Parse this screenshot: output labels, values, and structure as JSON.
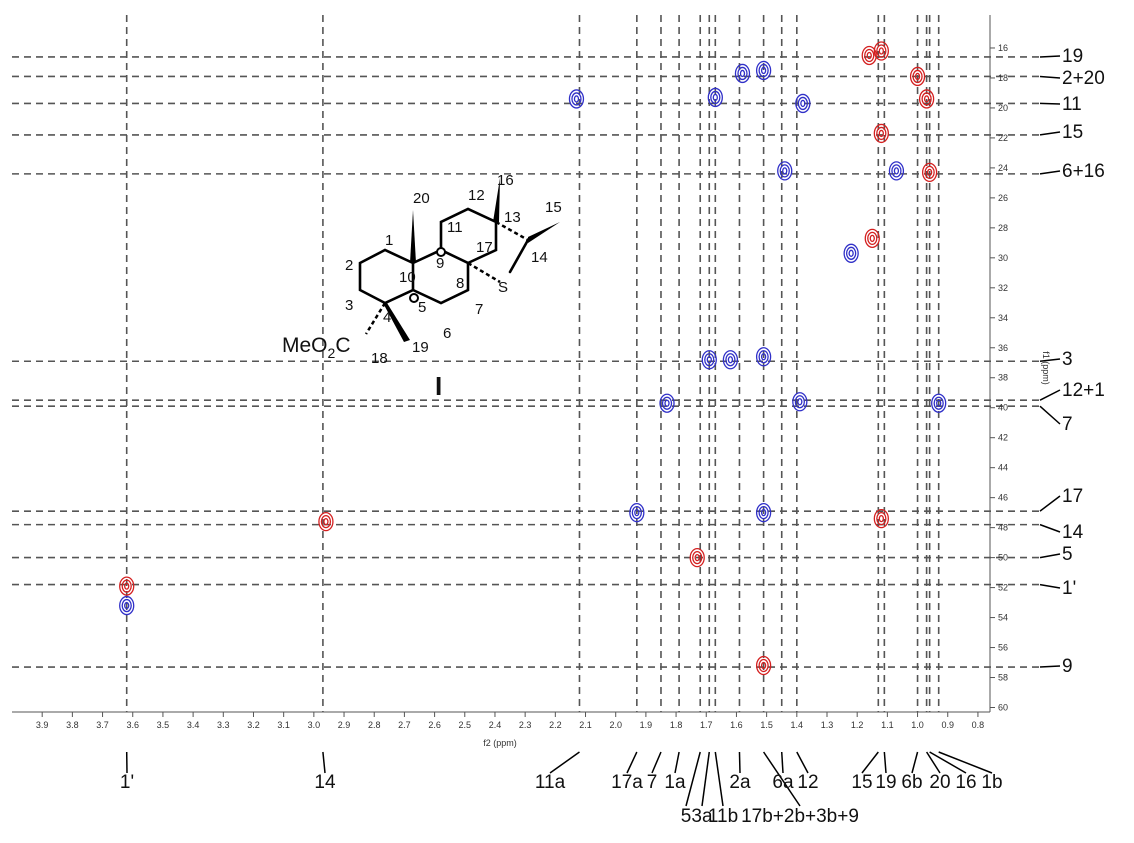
{
  "chart_data": {
    "type": "contour",
    "x_label": "f2 (ppm)",
    "y_label": "f1 (ppm)",
    "xlim": [
      4.0,
      0.76
    ],
    "ylim": [
      13.8,
      60.3
    ],
    "xticks": [
      3.9,
      3.8,
      3.7,
      3.6,
      3.5,
      3.4,
      3.3,
      3.2,
      3.1,
      {
        "value": 3,
        "label": "3.0"
      },
      2.9,
      2.8,
      2.7,
      2.6,
      2.5,
      2.4,
      2.3,
      2.2,
      2.1,
      {
        "value": 2,
        "label": "2.0"
      },
      1.9,
      1.8,
      1.7,
      1.6,
      1.5,
      1.4,
      1.3,
      1.2,
      1.1,
      {
        "value": 1,
        "label": "1.0"
      },
      0.9,
      0.8
    ],
    "yticks": [
      16,
      18,
      20,
      22,
      24,
      26,
      28,
      30,
      32,
      34,
      36,
      38,
      40,
      42,
      44,
      46,
      48,
      50,
      52,
      54,
      56,
      58,
      60
    ],
    "x_assignments": [
      {
        "label": "1'",
        "shift": 3.62
      },
      {
        "label": "14",
        "shift": 2.97
      },
      {
        "label": "11a",
        "shift": 2.12
      },
      {
        "label": "17a",
        "shift": 1.93
      },
      {
        "label": "7",
        "shift": 1.85
      },
      {
        "label": "1a",
        "shift": 1.79
      },
      {
        "label": "5",
        "shift": 1.72
      },
      {
        "label": "3a",
        "shift": 1.69
      },
      {
        "label": "11b",
        "shift": 1.67
      },
      {
        "label": "2a",
        "shift": 1.59
      },
      {
        "label": "17b+2b+3b+9",
        "shift": 1.51
      },
      {
        "label": "6a",
        "shift": 1.45
      },
      {
        "label": "12",
        "shift": 1.4
      },
      {
        "label": "15",
        "shift": 1.13
      },
      {
        "label": "19",
        "shift": 1.11
      },
      {
        "label": "6b",
        "shift": 1.0
      },
      {
        "label": "20",
        "shift": 0.97
      },
      {
        "label": "16",
        "shift": 0.96
      },
      {
        "label": "1b",
        "shift": 0.93
      }
    ],
    "y_assignments": [
      {
        "label": "19",
        "shift": 16.6
      },
      {
        "label": "2+20",
        "shift": 17.9
      },
      {
        "label": "11",
        "shift": 19.7
      },
      {
        "label": "15",
        "shift": 21.8
      },
      {
        "label": "6+16",
        "shift": 24.4
      },
      {
        "label": "3",
        "shift": 36.9
      },
      {
        "label": "12+1",
        "shift": 39.5
      },
      {
        "label": "7",
        "shift": 39.9
      },
      {
        "label": "17",
        "shift": 46.9
      },
      {
        "label": "14",
        "shift": 47.8
      },
      {
        "label": "5",
        "shift": 50.0
      },
      {
        "label": "1'",
        "shift": 51.8
      },
      {
        "label": "9",
        "shift": 57.3
      }
    ],
    "peaks": [
      {
        "x": 3.62,
        "y": 51.9,
        "color": "#d42020"
      },
      {
        "x": 3.62,
        "y": 53.2,
        "color": "#3030c8"
      },
      {
        "x": 2.96,
        "y": 47.6,
        "color": "#d42020"
      },
      {
        "x": 2.13,
        "y": 19.4,
        "color": "#3030c8"
      },
      {
        "x": 1.93,
        "y": 47.0,
        "color": "#3030c8"
      },
      {
        "x": 1.83,
        "y": 39.7,
        "color": "#3030c8"
      },
      {
        "x": 1.73,
        "y": 50.0,
        "color": "#d42020"
      },
      {
        "x": 1.69,
        "y": 36.8,
        "color": "#3030c8"
      },
      {
        "x": 1.62,
        "y": 36.8,
        "color": "#3030c8"
      },
      {
        "x": 1.67,
        "y": 19.3,
        "color": "#3030c8"
      },
      {
        "x": 1.58,
        "y": 17.7,
        "color": "#3030c8"
      },
      {
        "x": 1.51,
        "y": 17.5,
        "color": "#3030c8"
      },
      {
        "x": 1.51,
        "y": 36.6,
        "color": "#3030c8"
      },
      {
        "x": 1.51,
        "y": 47.0,
        "color": "#3030c8"
      },
      {
        "x": 1.51,
        "y": 57.2,
        "color": "#d42020"
      },
      {
        "x": 1.44,
        "y": 24.2,
        "color": "#3030c8"
      },
      {
        "x": 1.38,
        "y": 19.7,
        "color": "#3030c8"
      },
      {
        "x": 1.39,
        "y": 39.6,
        "color": "#3030c8"
      },
      {
        "x": 1.22,
        "y": 29.7,
        "color": "#3030c8"
      },
      {
        "x": 1.15,
        "y": 28.7,
        "color": "#d42020"
      },
      {
        "x": 1.16,
        "y": 16.5,
        "color": "#d42020"
      },
      {
        "x": 1.12,
        "y": 16.2,
        "color": "#d42020"
      },
      {
        "x": 1.12,
        "y": 21.7,
        "color": "#d42020"
      },
      {
        "x": 1.12,
        "y": 47.4,
        "color": "#d42020"
      },
      {
        "x": 1.07,
        "y": 24.2,
        "color": "#3030c8"
      },
      {
        "x": 1.0,
        "y": 17.9,
        "color": "#d42020"
      },
      {
        "x": 0.96,
        "y": 24.3,
        "color": "#d42020"
      },
      {
        "x": 0.97,
        "y": 19.4,
        "color": "#d42020"
      },
      {
        "x": 0.93,
        "y": 39.7,
        "color": "#3030c8"
      }
    ]
  },
  "structure": {
    "compound": "I",
    "ester": [
      "MeO",
      "2",
      "C"
    ],
    "atoms": [
      "20",
      "16",
      "15",
      "12",
      "13",
      "11",
      "1",
      "17",
      "14",
      "2",
      "9",
      "10",
      "8",
      "S",
      "3",
      "4",
      "5",
      "7",
      "6",
      "18",
      "19"
    ]
  }
}
